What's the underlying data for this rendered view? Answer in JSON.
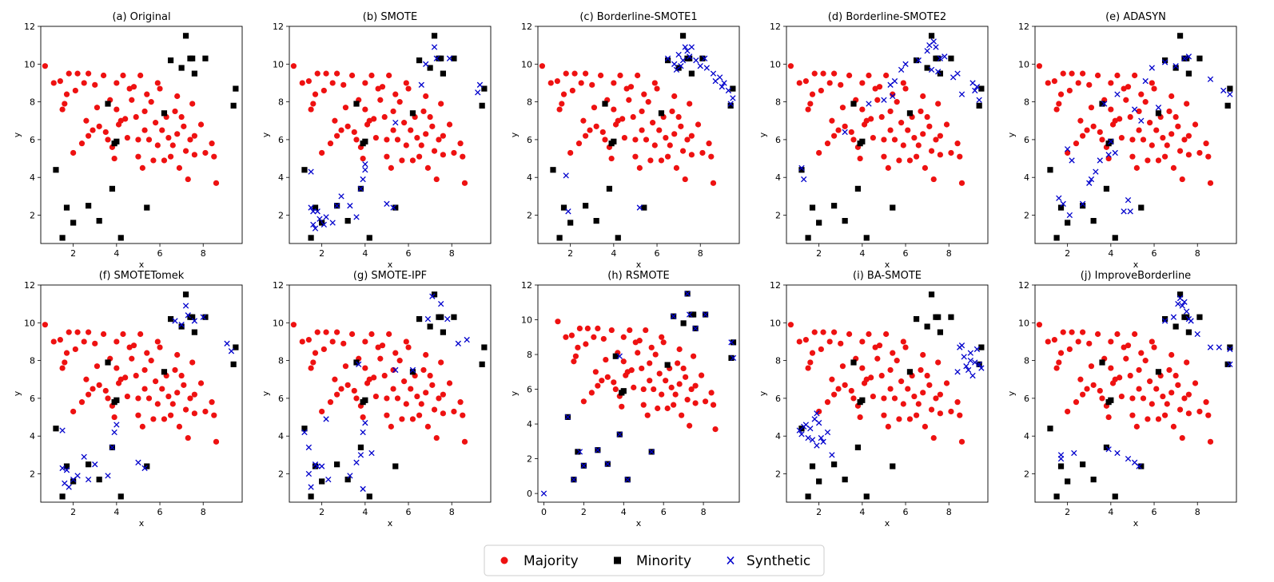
{
  "legend": {
    "majority_label": "Majority",
    "minority_label": "Minority",
    "synthetic_label": "Synthetic",
    "majority_color": "#ee1111",
    "minority_color": "#000000",
    "synthetic_color": "#0000cc"
  },
  "chart_data": [
    {
      "type": "scatter",
      "title": "(a) Original",
      "xlabel": "x",
      "ylabel": "y",
      "xlim": [
        0.5,
        9.8
      ],
      "ylim": [
        0.5,
        12
      ],
      "xticks": [
        2,
        4,
        6,
        8
      ],
      "yticks": [
        2,
        4,
        6,
        8,
        10,
        12
      ],
      "series": [
        {
          "name": "Majority",
          "points": "maj"
        },
        {
          "name": "Minority",
          "points": "min"
        },
        {
          "name": "Synthetic",
          "x": [],
          "y": []
        }
      ]
    },
    {
      "type": "scatter",
      "title": "(b) SMOTE",
      "xlabel": "x",
      "ylabel": "y",
      "xlim": [
        0.5,
        9.8
      ],
      "ylim": [
        0.5,
        12
      ],
      "xticks": [
        2,
        4,
        6,
        8
      ],
      "yticks": [
        2,
        4,
        6,
        8,
        10,
        12
      ],
      "series": [
        {
          "name": "Majority",
          "points": "maj"
        },
        {
          "name": "Minority",
          "points": "min"
        },
        {
          "name": "Synthetic",
          "x": [
            1.5,
            1.6,
            1.7,
            1.9,
            2.2,
            2.5,
            2.7,
            2.9,
            3.3,
            3.6,
            3.8,
            3.9,
            4.0,
            4.0,
            5.0,
            5.3,
            1.5,
            1.8,
            2.1,
            5.4,
            6.6,
            6.8,
            7.2,
            7.3,
            7.9,
            9.3,
            9.2,
            1.6
          ],
          "y": [
            4.3,
            1.5,
            1.3,
            1.8,
            1.9,
            1.6,
            2.5,
            3.0,
            2.5,
            1.9,
            3.4,
            3.9,
            4.4,
            4.7,
            2.6,
            2.4,
            2.4,
            2.2,
            1.5,
            6.9,
            8.9,
            10.0,
            10.9,
            10.3,
            10.3,
            8.9,
            8.5,
            2.2
          ]
        }
      ]
    },
    {
      "type": "scatter",
      "title": "(c) Borderline-SMOTE1",
      "xlabel": "x",
      "ylabel": "y",
      "xlim": [
        0.5,
        9.8
      ],
      "ylim": [
        0.5,
        12
      ],
      "xticks": [
        2,
        4,
        6,
        8
      ],
      "yticks": [
        2,
        4,
        6,
        8,
        10,
        12
      ],
      "series": [
        {
          "name": "Majority",
          "points": "maj"
        },
        {
          "name": "Minority",
          "points": "min"
        },
        {
          "name": "Synthetic",
          "x": [
            6.5,
            6.8,
            7.0,
            7.1,
            7.3,
            7.5,
            7.6,
            7.8,
            8.0,
            8.3,
            8.6,
            8.9,
            9.1,
            9.3,
            9.5,
            9.4,
            6.9,
            7.2,
            1.8,
            1.9,
            5.2,
            7.4,
            8.2,
            8.7,
            9.0
          ],
          "y": [
            10.3,
            10.0,
            10.5,
            9.9,
            10.9,
            10.4,
            10.9,
            10.2,
            9.9,
            9.8,
            9.5,
            9.3,
            9.0,
            8.6,
            8.2,
            7.9,
            9.7,
            10.2,
            4.1,
            2.2,
            2.4,
            10.7,
            10.3,
            9.1,
            8.8
          ]
        }
      ]
    },
    {
      "type": "scatter",
      "title": "(d) Borderline-SMOTE2",
      "xlabel": "x",
      "ylabel": "y",
      "xlim": [
        0.5,
        9.8
      ],
      "ylim": [
        0.5,
        12
      ],
      "xticks": [
        2,
        4,
        6,
        8
      ],
      "yticks": [
        2,
        4,
        6,
        8,
        10,
        12
      ],
      "series": [
        {
          "name": "Majority",
          "points": "maj"
        },
        {
          "name": "Minority",
          "points": "min"
        },
        {
          "name": "Synthetic",
          "x": [
            1.2,
            1.3,
            3.2,
            4.3,
            5.0,
            5.4,
            5.5,
            5.8,
            6.0,
            6.6,
            7.0,
            7.1,
            7.3,
            7.4,
            7.6,
            7.8,
            8.2,
            8.4,
            8.6,
            9.1,
            9.3,
            9.4,
            5.3,
            7.2,
            7.5,
            9.2
          ],
          "y": [
            4.5,
            3.9,
            6.4,
            7.9,
            8.1,
            8.3,
            9.1,
            9.7,
            10.0,
            10.2,
            10.7,
            11.0,
            11.2,
            10.9,
            10.3,
            10.4,
            9.3,
            9.5,
            8.4,
            9.0,
            8.8,
            8.1,
            8.9,
            9.7,
            9.6,
            8.6
          ]
        }
      ]
    },
    {
      "type": "scatter",
      "title": "(e) ADASYN",
      "xlabel": "x",
      "ylabel": "y",
      "xlim": [
        0.5,
        9.8
      ],
      "ylim": [
        0.5,
        12
      ],
      "xticks": [
        2,
        4,
        6,
        8
      ],
      "yticks": [
        2,
        4,
        6,
        8,
        10,
        12
      ],
      "series": [
        {
          "name": "Majority",
          "points": "maj"
        },
        {
          "name": "Minority",
          "points": "min"
        },
        {
          "name": "Synthetic",
          "x": [
            1.6,
            1.8,
            2.1,
            2.0,
            2.2,
            2.7,
            3.0,
            3.1,
            3.3,
            3.5,
            3.7,
            3.9,
            4.0,
            4.2,
            4.3,
            4.6,
            4.8,
            4.9,
            5.1,
            5.4,
            5.6,
            5.9,
            6.2,
            6.5,
            7.0,
            7.4,
            7.6,
            8.6,
            9.2,
            9.5
          ],
          "y": [
            2.9,
            2.6,
            2.0,
            5.5,
            4.9,
            2.6,
            3.7,
            3.9,
            4.3,
            4.9,
            7.9,
            5.2,
            5.9,
            5.3,
            8.4,
            2.2,
            2.8,
            2.2,
            7.6,
            7.0,
            9.1,
            9.8,
            7.7,
            10.1,
            9.9,
            10.3,
            10.4,
            9.2,
            8.6,
            8.4
          ]
        }
      ]
    },
    {
      "type": "scatter",
      "title": "(f) SMOTETomek",
      "xlabel": "x",
      "ylabel": "y",
      "xlim": [
        0.5,
        9.8
      ],
      "ylim": [
        0.5,
        12
      ],
      "xticks": [
        2,
        4,
        6,
        8
      ],
      "yticks": [
        2,
        4,
        6,
        8,
        10,
        12
      ],
      "series": [
        {
          "name": "Majority",
          "points": "maj"
        },
        {
          "name": "Minority",
          "points": "min"
        },
        {
          "name": "Synthetic",
          "x": [
            1.5,
            1.6,
            1.8,
            2.0,
            2.2,
            2.5,
            2.7,
            3.0,
            3.6,
            3.8,
            3.9,
            4.0,
            5.0,
            5.3,
            1.5,
            1.7,
            6.7,
            7.0,
            7.2,
            7.3,
            7.6,
            8.0,
            9.3,
            9.1
          ],
          "y": [
            4.3,
            1.5,
            1.3,
            1.7,
            1.9,
            2.9,
            1.7,
            2.5,
            1.9,
            3.4,
            4.2,
            4.6,
            2.6,
            2.3,
            2.3,
            2.2,
            10.1,
            9.9,
            10.9,
            10.4,
            10.1,
            10.3,
            8.5,
            8.9
          ]
        }
      ]
    },
    {
      "type": "scatter",
      "title": "(g) SMOTE-IPF",
      "xlabel": "x",
      "ylabel": "y",
      "xlim": [
        0.5,
        9.8
      ],
      "ylim": [
        0.5,
        12
      ],
      "xticks": [
        2,
        4,
        6,
        8
      ],
      "yticks": [
        2,
        4,
        6,
        8,
        10,
        12
      ],
      "series": [
        {
          "name": "Majority",
          "points": "maj"
        },
        {
          "name": "Minority",
          "points": "min"
        },
        {
          "name": "Synthetic",
          "x": [
            1.2,
            1.4,
            1.5,
            1.7,
            2.0,
            2.2,
            2.3,
            3.3,
            3.6,
            3.8,
            3.9,
            4.0,
            4.3,
            5.4,
            6.2,
            6.9,
            7.1,
            7.5,
            7.8,
            8.3,
            8.7,
            3.7,
            3.9,
            1.4,
            1.8
          ],
          "y": [
            4.2,
            3.4,
            1.3,
            2.5,
            2.4,
            4.9,
            1.7,
            1.9,
            2.6,
            3.0,
            4.2,
            4.7,
            3.1,
            7.5,
            7.5,
            10.2,
            11.4,
            11.0,
            10.2,
            8.9,
            9.1,
            7.8,
            1.2,
            2.0,
            2.4
          ]
        }
      ]
    },
    {
      "type": "scatter",
      "title": "(h) RSMOTE",
      "xlabel": "x",
      "ylabel": "y",
      "xlim": [
        -0.3,
        9.8
      ],
      "ylim": [
        -0.5,
        12
      ],
      "xticks": [
        0,
        2,
        4,
        6,
        8
      ],
      "yticks": [
        0,
        2,
        4,
        6,
        8,
        10,
        12
      ],
      "series": [
        {
          "name": "Majority",
          "points": "maj"
        },
        {
          "name": "Minority",
          "points": "min"
        },
        {
          "name": "Synthetic",
          "x": [
            0.0,
            1.2,
            1.5,
            1.8,
            2.0,
            2.7,
            3.2,
            3.8,
            4.2,
            5.4,
            6.5,
            7.2,
            7.6,
            8.1,
            9.4,
            9.5,
            3.8,
            7.3
          ],
          "y": [
            0.0,
            4.4,
            0.8,
            2.4,
            1.6,
            2.5,
            1.7,
            3.4,
            0.8,
            2.4,
            10.2,
            11.5,
            9.5,
            10.3,
            8.7,
            7.8,
            7.9,
            10.3
          ]
        }
      ]
    },
    {
      "type": "scatter",
      "title": "(i) BA-SMOTE",
      "xlabel": "x",
      "ylabel": "y",
      "xlim": [
        0.5,
        9.8
      ],
      "ylim": [
        0.5,
        12
      ],
      "xticks": [
        2,
        4,
        6,
        8
      ],
      "yticks": [
        2,
        4,
        6,
        8,
        10,
        12
      ],
      "series": [
        {
          "name": "Majority",
          "points": "maj"
        },
        {
          "name": "Minority",
          "points": "min"
        },
        {
          "name": "Synthetic",
          "x": [
            1.1,
            1.2,
            1.3,
            1.4,
            1.5,
            1.7,
            1.8,
            1.9,
            2.0,
            2.2,
            2.4,
            2.6,
            1.6,
            1.9,
            2.1,
            8.4,
            8.5,
            8.7,
            8.8,
            9.0,
            9.1,
            9.2,
            9.3,
            9.4,
            9.5,
            9.0,
            8.6,
            8.9
          ],
          "y": [
            4.3,
            4.1,
            4.5,
            4.6,
            3.9,
            3.8,
            4.9,
            3.5,
            4.7,
            3.7,
            4.2,
            3.0,
            4.4,
            5.2,
            3.9,
            7.4,
            8.7,
            8.2,
            7.7,
            8.4,
            7.2,
            7.9,
            8.6,
            7.8,
            7.6,
            8.0,
            8.8,
            7.5
          ]
        }
      ]
    },
    {
      "type": "scatter",
      "title": "(j) ImproveBorderline",
      "xlabel": "x",
      "ylabel": "y",
      "xlim": [
        0.5,
        9.8
      ],
      "ylim": [
        0.5,
        12
      ],
      "xticks": [
        2,
        4,
        6,
        8
      ],
      "yticks": [
        2,
        4,
        6,
        8,
        10,
        12
      ],
      "series": [
        {
          "name": "Majority",
          "points": "maj"
        },
        {
          "name": "Minority",
          "points": "min"
        },
        {
          "name": "Synthetic",
          "x": [
            1.7,
            1.7,
            2.3,
            3.9,
            4.3,
            4.8,
            5.1,
            5.3,
            6.5,
            6.9,
            7.2,
            7.4,
            7.5,
            7.7,
            8.0,
            8.6,
            9.0,
            9.5,
            9.5,
            7.3,
            7.6,
            7.1
          ],
          "y": [
            3.0,
            2.8,
            3.1,
            3.3,
            3.1,
            2.8,
            2.6,
            2.4,
            10.1,
            10.3,
            11.3,
            11.1,
            10.6,
            10.1,
            9.4,
            8.7,
            8.7,
            8.6,
            7.8,
            10.9,
            10.2,
            11.0
          ]
        }
      ]
    }
  ],
  "shared_points": {
    "majority": {
      "x": [
        0.7,
        1.1,
        1.4,
        1.5,
        1.7,
        1.8,
        2.1,
        2.2,
        2.5,
        2.6,
        2.7,
        2.7,
        2.9,
        3.1,
        3.2,
        3.4,
        3.5,
        3.6,
        3.7,
        3.8,
        3.9,
        4.0,
        4.0,
        4.1,
        4.3,
        4.4,
        4.5,
        4.7,
        4.8,
        4.9,
        5.0,
        5.0,
        5.1,
        5.2,
        5.3,
        5.4,
        5.5,
        5.6,
        5.7,
        5.8,
        5.9,
        6.0,
        6.1,
        6.2,
        6.3,
        6.4,
        6.5,
        6.6,
        6.7,
        6.8,
        6.9,
        7.0,
        7.1,
        7.2,
        7.3,
        7.4,
        7.5,
        7.6,
        7.9,
        8.1,
        8.4,
        8.5,
        8.6,
        1.6,
        2.0,
        3.0,
        2.4,
        4.6,
        5.9,
        6.8,
        4.2,
        5.3,
        7.6
      ],
      "y": [
        9.9,
        9.0,
        9.1,
        7.6,
        8.4,
        9.5,
        8.6,
        9.5,
        9.0,
        7.0,
        6.2,
        9.5,
        6.5,
        7.7,
        6.7,
        9.4,
        6.4,
        6.0,
        8.1,
        5.6,
        5.0,
        7.6,
        9.0,
        6.8,
        9.4,
        7.1,
        6.1,
        8.1,
        8.8,
        7.2,
        5.1,
        6.0,
        9.4,
        4.5,
        7.5,
        8.4,
        6.0,
        8.0,
        4.9,
        6.9,
        5.7,
        8.7,
        6.5,
        4.9,
        7.2,
        6.1,
        5.1,
        5.7,
        7.5,
        6.3,
        4.5,
        7.2,
        6.7,
        5.4,
        3.9,
        6.0,
        7.9,
        5.2,
        6.8,
        5.3,
        5.8,
        5.1,
        3.7,
        7.9,
        5.3,
        8.9,
        5.8,
        8.7,
        9.0,
        8.3,
        7.0,
        6.5,
        6.2
      ]
    },
    "minority": {
      "x": [
        1.2,
        1.5,
        1.7,
        2.0,
        2.7,
        3.2,
        3.6,
        3.8,
        3.9,
        4.0,
        4.2,
        5.4,
        6.2,
        6.5,
        7.0,
        7.2,
        7.5,
        7.6,
        8.1,
        9.4,
        9.5,
        7.4
      ],
      "y": [
        4.4,
        0.8,
        2.4,
        1.6,
        2.5,
        1.7,
        7.9,
        3.4,
        5.8,
        5.9,
        0.8,
        2.4,
        7.4,
        10.2,
        9.8,
        11.5,
        10.3,
        9.5,
        10.3,
        7.8,
        8.7,
        10.3
      ]
    }
  }
}
